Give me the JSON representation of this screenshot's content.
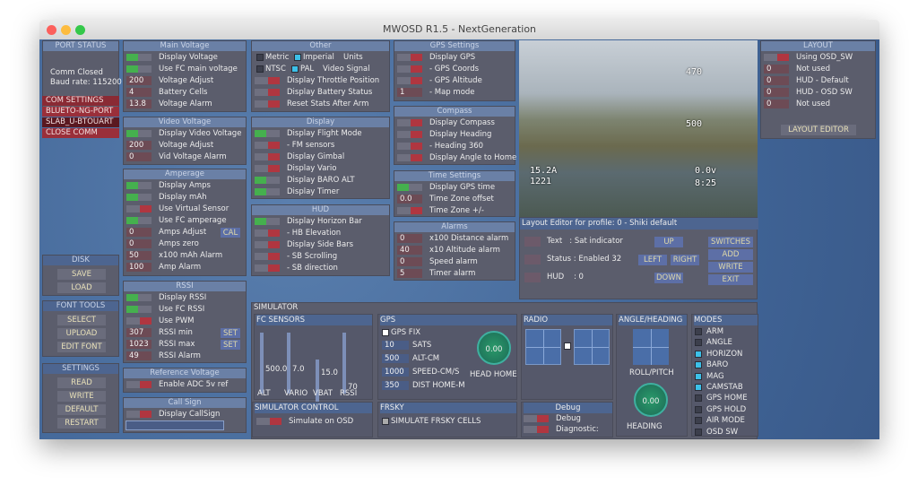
{
  "window": {
    "title": "MWOSD R1.5 - NextGeneration"
  },
  "port_status": {
    "title": "PORT STATUS",
    "status": "Comm Closed",
    "baud_rate": "Baud rate: 115200"
  },
  "com_menu": {
    "title": "COM SETTINGS",
    "items": [
      "BLUETO-NG-PORT",
      "SLAB_U-BTOUART",
      "CLOSE COMM"
    ]
  },
  "tool_groups": [
    {
      "title": "DISK",
      "buttons": [
        "SAVE",
        "LOAD"
      ]
    },
    {
      "title": "FONT TOOLS",
      "buttons": [
        "SELECT",
        "UPLOAD",
        "EDIT FONT"
      ]
    },
    {
      "title": "SETTINGS",
      "buttons": [
        "READ",
        "WRITE",
        "DEFAULT",
        "RESTART"
      ]
    }
  ],
  "panels": [
    {
      "title": "Main Voltage",
      "rows": [
        {
          "label": "Display Voltage",
          "on": true
        },
        {
          "label": "Use FC main voltage",
          "on": true
        },
        {
          "label": "Voltage Adjust",
          "value": "200"
        },
        {
          "label": "Battery Cells",
          "value": "4"
        },
        {
          "label": "Voltage Alarm",
          "value": "13.8"
        }
      ]
    },
    {
      "title": "Video Voltage",
      "rows": [
        {
          "label": "Display Video Voltage",
          "on": true
        },
        {
          "label": "Voltage Adjust",
          "value": "200"
        },
        {
          "label": "Vid Voltage Alarm",
          "value": "0"
        }
      ]
    },
    {
      "title": "Amperage",
      "rows": [
        {
          "label": "Display Amps",
          "on": true
        },
        {
          "label": "Display mAh",
          "on": true
        },
        {
          "label": "Use Virtual Sensor",
          "on": false
        },
        {
          "label": "Use FC amperage",
          "on": true
        },
        {
          "label": "Amps Adjust",
          "value": "0",
          "button": "CAL"
        },
        {
          "label": "Amps zero",
          "value": "0"
        },
        {
          "label": "x100 mAh Alarm",
          "value": "50"
        },
        {
          "label": "Amp Alarm",
          "value": "100"
        }
      ]
    },
    {
      "title": "RSSI",
      "rows": [
        {
          "label": "Display RSSI",
          "on": true
        },
        {
          "label": "Use FC RSSI",
          "on": true
        },
        {
          "label": "Use PWM",
          "on": false
        },
        {
          "label": "RSSI min",
          "value": "307",
          "button": "SET"
        },
        {
          "label": "RSSI max",
          "value": "1023",
          "button": "SET"
        },
        {
          "label": "RSSI Alarm",
          "value": "49"
        }
      ]
    },
    {
      "title": "Reference Voltage",
      "rows": [
        {
          "label": "Enable ADC 5v ref",
          "on": false
        }
      ]
    },
    {
      "title": "Call Sign",
      "rows": [
        {
          "label": "Display CallSign",
          "on": false
        }
      ]
    },
    {
      "title": "Other",
      "rows": [
        {
          "checks": [
            {
              "label": "Metric",
              "checked": false
            },
            {
              "label": "Imperial",
              "checked": true
            }
          ],
          "label": "Units"
        },
        {
          "checks": [
            {
              "label": "NTSC",
              "checked": false
            },
            {
              "label": "PAL",
              "checked": true
            }
          ],
          "label": "Video Signal"
        },
        {
          "label": "Display Throttle Position",
          "on": false
        },
        {
          "label": "Display Battery Status",
          "on": false
        },
        {
          "label": "Reset Stats After Arm",
          "on": false
        }
      ]
    },
    {
      "title": "Display",
      "rows": [
        {
          "label": "Display Flight Mode",
          "on": true
        },
        {
          "label": "- FM sensors",
          "on": false
        },
        {
          "label": "Display Gimbal",
          "on": false
        },
        {
          "label": "Display Vario",
          "on": false
        },
        {
          "label": "Display BARO ALT",
          "on": true
        },
        {
          "label": "Display Timer",
          "on": true
        }
      ]
    },
    {
      "title": "HUD",
      "rows": [
        {
          "label": "Display Horizon Bar",
          "on": true
        },
        {
          "label": "- HB Elevation",
          "on": false
        },
        {
          "label": "Display Side Bars",
          "on": false
        },
        {
          "label": "- SB Scrolling",
          "on": false
        },
        {
          "label": "- SB direction",
          "on": false
        }
      ]
    },
    {
      "title": "GPS Settings",
      "rows": [
        {
          "label": "Display GPS",
          "on": false
        },
        {
          "label": "- GPS Coords",
          "on": false
        },
        {
          "label": "- GPS Altitude",
          "on": false
        },
        {
          "label": "- Map mode",
          "value": "1"
        }
      ]
    },
    {
      "title": "Compass",
      "rows": [
        {
          "label": "Display Compass",
          "on": false
        },
        {
          "label": "Display Heading",
          "on": false
        },
        {
          "label": "- Heading 360",
          "on": false
        },
        {
          "label": "Display Angle to Home",
          "on": false
        }
      ]
    },
    {
      "title": "Time Settings",
      "rows": [
        {
          "label": "Display GPS time",
          "on": true
        },
        {
          "label": "Time Zone offset",
          "value": "0.0"
        },
        {
          "label": "Time Zone +/-",
          "on": false
        }
      ]
    },
    {
      "title": "Alarms",
      "rows": [
        {
          "label": "x100 Distance alarm",
          "value": "0"
        },
        {
          "label": "x10  Altitude alarm",
          "value": "40"
        },
        {
          "label": "Speed alarm",
          "value": "0"
        },
        {
          "label": "Timer alarm",
          "value": "5"
        }
      ]
    },
    {
      "title": "LAYOUT",
      "rows": [
        {
          "label": "Using OSD_SW",
          "on": false
        },
        {
          "label": "Not used",
          "value": "0"
        },
        {
          "label": "HUD - Default",
          "value": "0"
        },
        {
          "label": "HUD - OSD SW",
          "value": "0"
        },
        {
          "label": "Not used",
          "value": "0"
        }
      ],
      "button": "LAYOUT EDITOR"
    }
  ],
  "video": {
    "osd": [
      "470",
      "500",
      "15.2A",
      "1221",
      "0.0v",
      "8:25"
    ]
  },
  "layout_editor": {
    "title": "Layout Editor for profile: 0 - Shiki default",
    "fields": [
      "Text   : Sat indicator",
      "Status : Enabled 32",
      "HUD    : 0"
    ],
    "buttons": [
      "UP",
      "LEFT",
      "RIGHT",
      "DOWN"
    ],
    "actions": [
      "SWITCHES",
      "ADD",
      "WRITE",
      "EXIT"
    ]
  },
  "simulator": {
    "title": "SIMULATOR",
    "fc_sensors": {
      "title": "FC SENSORS",
      "sliders": [
        {
          "label": "ALT",
          "value": "500.0"
        },
        {
          "label": "VARIO",
          "value": "7.0"
        },
        {
          "label": "VBAT",
          "value": "15.0"
        },
        {
          "label": "RSSI",
          "value": "70"
        }
      ]
    },
    "gps": {
      "title": "GPS",
      "fix": "GPS FIX",
      "fields": [
        {
          "value": "10",
          "label": "SATS"
        },
        {
          "value": "500",
          "label": "ALT-CM"
        },
        {
          "value": "1000",
          "label": "SPEED-CM/S"
        },
        {
          "value": "350",
          "label": "DIST HOME-M"
        }
      ],
      "dial": "0.00",
      "dial_label": "HEAD HOME"
    },
    "radio": {
      "title": "RADIO"
    },
    "angle": {
      "title": "ANGLE/HEADING",
      "pad_label": "ROLL/PITCH",
      "dial": "0.00",
      "dial_label": "HEADING"
    },
    "modes": {
      "title": "MODES",
      "items": [
        {
          "label": "ARM",
          "on": false
        },
        {
          "label": "ANGLE",
          "on": false
        },
        {
          "label": "HORIZON",
          "on": true
        },
        {
          "label": "BARO",
          "on": true
        },
        {
          "label": "MAG",
          "on": true
        },
        {
          "label": "CAMSTAB",
          "on": true
        },
        {
          "label": "GPS HOME",
          "on": false
        },
        {
          "label": "GPS HOLD",
          "on": false
        },
        {
          "label": "AIR MODE",
          "on": false
        },
        {
          "label": "OSD SW",
          "on": false
        }
      ]
    },
    "control": {
      "title": "SIMULATOR CONTROL",
      "row": {
        "label": "Simulate on OSD",
        "on": false
      }
    },
    "frsky": {
      "title": "FRSKY",
      "check": "SIMULATE FRSKY CELLS"
    },
    "debug": {
      "title": "Debug",
      "rows": [
        {
          "label": "Debug",
          "on": false
        },
        {
          "label": "Diagnostic:",
          "on": false
        }
      ]
    }
  }
}
